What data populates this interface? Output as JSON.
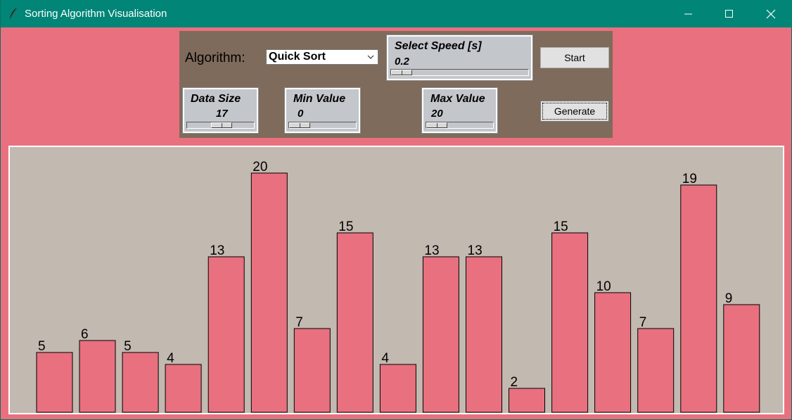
{
  "window": {
    "title": "Sorting Algorithm Visualisation"
  },
  "controls": {
    "algorithm_label": "Algorithm:",
    "algorithm_selected": "Quick Sort",
    "speed": {
      "label": "Select Speed [s]",
      "value": "0.2"
    },
    "data_size": {
      "label": "Data Size",
      "value": "17"
    },
    "min_value": {
      "label": "Min Value",
      "value": "0"
    },
    "max_value": {
      "label": "Max Value",
      "value": "20"
    },
    "start_label": "Start",
    "generate_label": "Generate"
  },
  "colors": {
    "background": "#e9707e",
    "titlebar": "#008577",
    "panel": "#7e6b5b",
    "canvas": "#c2b9b0",
    "bar": "#e9707e"
  },
  "icons": {
    "app": "feather-icon",
    "minimize": "minimize-icon",
    "maximize": "maximize-icon",
    "close": "close-icon",
    "dropdown": "chevron-down-icon"
  },
  "chart_data": {
    "type": "bar",
    "values": [
      5,
      6,
      5,
      4,
      13,
      20,
      7,
      15,
      4,
      13,
      13,
      2,
      15,
      10,
      7,
      19,
      9
    ],
    "ylim": [
      0,
      20
    ]
  }
}
